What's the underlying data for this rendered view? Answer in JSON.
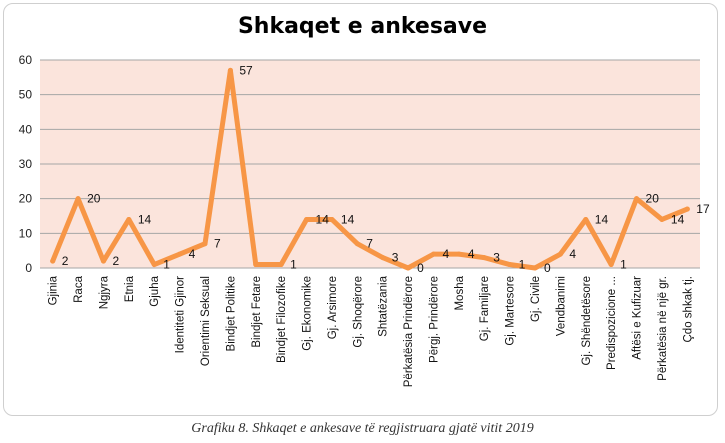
{
  "chart_data": {
    "type": "line",
    "title": "Shkaqet e ankesave",
    "xlabel": "",
    "ylabel": "",
    "ylim": [
      0,
      60
    ],
    "yticks": [
      0,
      10,
      20,
      30,
      40,
      50,
      60
    ],
    "grid": true,
    "legend": "none",
    "colors": {
      "line": "#F79646",
      "plot_bg": "#FBE4DC",
      "grid": "#A6A6A6"
    },
    "categories": [
      "Gjinia",
      "Raca",
      "Ngjyra",
      "Etnia",
      "Gjuha",
      "Identiteti Gjinor",
      "Orientimi Seksual",
      "Bindjet Politike",
      "Bindjet Fetare",
      "Bindjet Filozofike",
      "Gj. Ekonomike",
      "Gj. Arsimore",
      "Gj. Shoqërore",
      "Shtatëzania",
      "Përkatësia Prindërore",
      "Përgj. Prindërore",
      "Mosha",
      "Gj. Familjare",
      "Gj. Martesore",
      "Gj. Civile",
      "Vendbanimi",
      "Gj. Shëndetësore",
      "Predispozicione ...",
      "Aftësi e Kufizuar",
      "Përkatësia në një gr.",
      "Çdo shkak tj."
    ],
    "values": [
      2,
      20,
      2,
      14,
      1,
      4,
      7,
      57,
      1,
      1,
      14,
      14,
      7,
      3,
      0,
      4,
      4,
      3,
      1,
      0,
      4,
      14,
      1,
      20,
      14,
      17
    ],
    "data_labels": [
      "2",
      "20",
      "2",
      "14",
      "1",
      "4",
      "7",
      "57",
      "",
      "1",
      "14",
      "14",
      "7",
      "3",
      "0",
      "4",
      "4",
      "3",
      "1",
      "0",
      "4",
      "14",
      "1",
      "20",
      "14",
      "17"
    ]
  },
  "caption": "Grafiku 8. Shkaqet e ankesave të regjistruara gjatë vitit 2019"
}
